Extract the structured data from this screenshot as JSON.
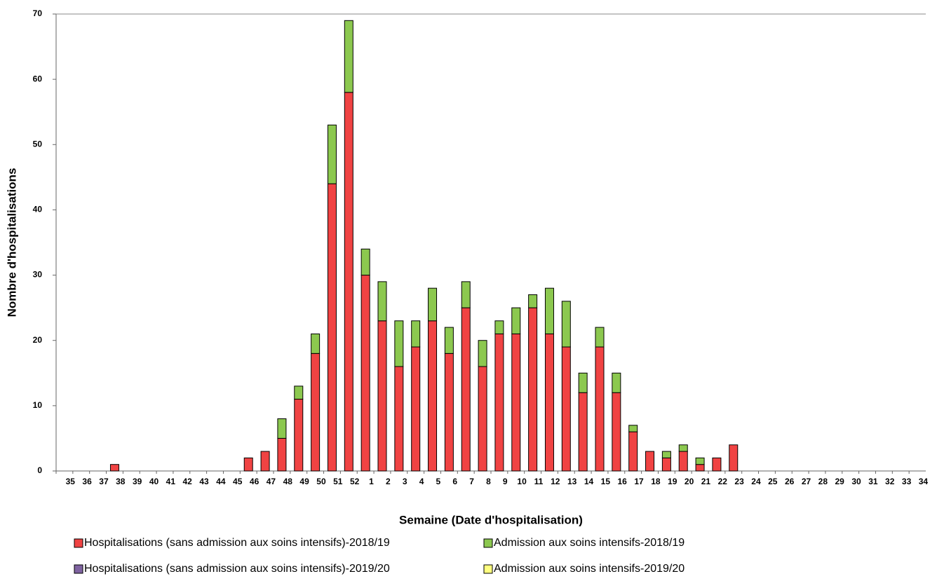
{
  "chart_data": {
    "type": "stacked-bar",
    "x_label": "Semaine (Date d'hospitalisation)",
    "y_label": "Nombre d'hospitalisations",
    "categories": [
      "35",
      "36",
      "37",
      "38",
      "39",
      "40",
      "41",
      "42",
      "43",
      "44",
      "45",
      "46",
      "47",
      "48",
      "49",
      "50",
      "51",
      "52",
      "1",
      "2",
      "3",
      "4",
      "5",
      "6",
      "7",
      "8",
      "9",
      "10",
      "11",
      "12",
      "13",
      "14",
      "15",
      "16",
      "17",
      "18",
      "19",
      "20",
      "21",
      "22",
      "23",
      "24",
      "25",
      "26",
      "27",
      "28",
      "29",
      "30",
      "31",
      "32",
      "33",
      "34"
    ],
    "series": [
      {
        "name": "Hospitalisations (sans admission aux soins intensifs)-2018/19",
        "color": "#f04343",
        "values": [
          0,
          0,
          0,
          1,
          0,
          0,
          0,
          0,
          0,
          0,
          0,
          2,
          3,
          5,
          11,
          18,
          44,
          58,
          30,
          23,
          16,
          19,
          23,
          18,
          25,
          16,
          21,
          21,
          25,
          21,
          19,
          12,
          19,
          12,
          6,
          3,
          2,
          3,
          1,
          2,
          4,
          0,
          0,
          0,
          0,
          0,
          0,
          0,
          0,
          0,
          0,
          0
        ]
      },
      {
        "name": "Admission aux soins intensifs-2018/19",
        "color": "#8cc84f",
        "values": [
          0,
          0,
          0,
          0,
          0,
          0,
          0,
          0,
          0,
          0,
          0,
          0,
          0,
          3,
          2,
          3,
          9,
          11,
          4,
          6,
          7,
          4,
          5,
          4,
          4,
          4,
          2,
          4,
          2,
          7,
          7,
          3,
          3,
          3,
          1,
          0,
          1,
          1,
          1,
          0,
          0,
          0,
          0,
          0,
          0,
          0,
          0,
          0,
          0,
          0,
          0,
          0
        ]
      },
      {
        "name": "Hospitalisations (sans admission aux soins intensifs)-2019/20",
        "color": "#7f63a1",
        "values": [
          0,
          0,
          0,
          0,
          0,
          0,
          0,
          0,
          0,
          0,
          0,
          0,
          0,
          0,
          0,
          0,
          0,
          0,
          0,
          0,
          0,
          0,
          0,
          0,
          0,
          0,
          0,
          0,
          0,
          0,
          0,
          0,
          0,
          0,
          0,
          0,
          0,
          0,
          0,
          0,
          0,
          0,
          0,
          0,
          0,
          0,
          0,
          0,
          0,
          0,
          0,
          0
        ]
      },
      {
        "name": "Admission aux soins intensifs-2019/20",
        "color": "#ffff7f",
        "values": [
          0,
          0,
          0,
          0,
          0,
          0,
          0,
          0,
          0,
          0,
          0,
          0,
          0,
          0,
          0,
          0,
          0,
          0,
          0,
          0,
          0,
          0,
          0,
          0,
          0,
          0,
          0,
          0,
          0,
          0,
          0,
          0,
          0,
          0,
          0,
          0,
          0,
          0,
          0,
          0,
          0,
          0,
          0,
          0,
          0,
          0,
          0,
          0,
          0,
          0,
          0,
          0
        ]
      }
    ],
    "ylim": [
      0,
      70
    ],
    "yticks": [
      0,
      10,
      20,
      30,
      40,
      50,
      60,
      70
    ]
  }
}
